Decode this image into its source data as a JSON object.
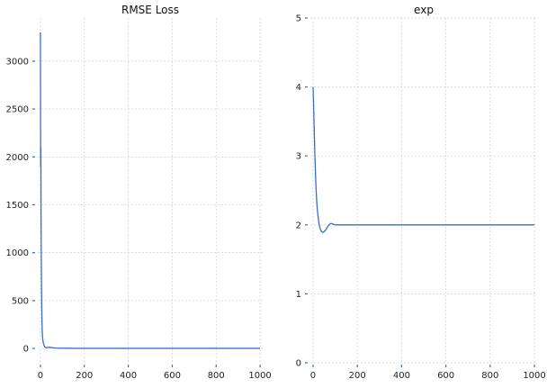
{
  "chart_data": [
    {
      "type": "line",
      "title": "RMSE Loss",
      "xlabel": "",
      "ylabel": "",
      "xlim": [
        -12,
        1012
      ],
      "ylim": [
        -150,
        3450
      ],
      "xticks": [
        0,
        200,
        400,
        600,
        800,
        1000
      ],
      "yticks": [
        0,
        500,
        1000,
        1500,
        2000,
        2500,
        3000
      ],
      "grid": true,
      "series": [
        {
          "color": "#3b6fc4",
          "x": [
            0,
            1,
            2,
            3,
            4,
            5,
            6,
            7,
            8,
            10,
            12,
            15,
            20,
            25,
            30,
            40,
            50,
            60,
            80,
            100,
            150,
            200,
            300,
            400,
            500,
            600,
            700,
            800,
            900,
            1000
          ],
          "y": [
            3300,
            1900,
            2100,
            1300,
            950,
            650,
            450,
            300,
            200,
            110,
            70,
            40,
            15,
            10,
            8,
            12,
            9,
            6,
            3,
            2,
            1,
            1,
            1,
            1,
            1,
            1,
            1,
            1,
            1,
            1
          ]
        }
      ]
    },
    {
      "type": "line",
      "title": "exp",
      "xlabel": "",
      "ylabel": "",
      "xlim": [
        -12,
        1012
      ],
      "ylim": [
        0,
        5
      ],
      "xticks": [
        0,
        200,
        400,
        600,
        800,
        1000
      ],
      "yticks": [
        0,
        1,
        2,
        3,
        4,
        5
      ],
      "grid": true,
      "series": [
        {
          "color": "#3b6fc4",
          "x": [
            0,
            2,
            4,
            6,
            8,
            10,
            12,
            14,
            16,
            18,
            20,
            25,
            30,
            35,
            40,
            45,
            50,
            55,
            60,
            65,
            70,
            75,
            80,
            85,
            90,
            100,
            150,
            200,
            400,
            600,
            800,
            1000
          ],
          "y": [
            4.0,
            3.8,
            3.55,
            3.3,
            3.05,
            2.85,
            2.65,
            2.5,
            2.38,
            2.28,
            2.2,
            2.06,
            1.97,
            1.92,
            1.9,
            1.89,
            1.9,
            1.92,
            1.94,
            1.97,
            1.99,
            2.01,
            2.02,
            2.02,
            2.01,
            2.0,
            2.0,
            2.0,
            2.0,
            2.0,
            2.0,
            2.0
          ]
        }
      ]
    }
  ]
}
